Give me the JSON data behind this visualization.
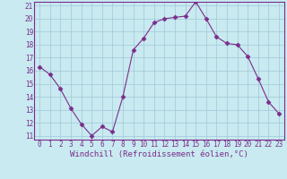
{
  "x": [
    0,
    1,
    2,
    3,
    4,
    5,
    6,
    7,
    8,
    9,
    10,
    11,
    12,
    13,
    14,
    15,
    16,
    17,
    18,
    19,
    20,
    21,
    22,
    23
  ],
  "y": [
    16.3,
    15.7,
    14.6,
    13.1,
    11.9,
    11.0,
    11.7,
    11.3,
    14.0,
    17.6,
    18.5,
    19.7,
    20.0,
    20.1,
    20.2,
    21.3,
    20.0,
    18.6,
    18.1,
    18.0,
    17.1,
    15.4,
    13.6,
    12.7
  ],
  "line_color": "#7b2d8b",
  "marker": "D",
  "marker_size": 2.5,
  "bg_color": "#c8eaf0",
  "grid_color": "#a0c8d8",
  "xlabel": "Windchill (Refroidissement éolien,°C)",
  "xlabel_color": "#7b2d8b",
  "xlim_min": -0.5,
  "xlim_max": 23.5,
  "ylim_min": 10.7,
  "ylim_max": 21.3,
  "yticks": [
    11,
    12,
    13,
    14,
    15,
    16,
    17,
    18,
    19,
    20,
    21
  ],
  "xticks": [
    0,
    1,
    2,
    3,
    4,
    5,
    6,
    7,
    8,
    9,
    10,
    11,
    12,
    13,
    14,
    15,
    16,
    17,
    18,
    19,
    20,
    21,
    22,
    23
  ],
  "tick_color": "#7b2d8b",
  "tick_fontsize": 5.5,
  "xlabel_fontsize": 6.5,
  "spine_color": "#7b2d8b"
}
